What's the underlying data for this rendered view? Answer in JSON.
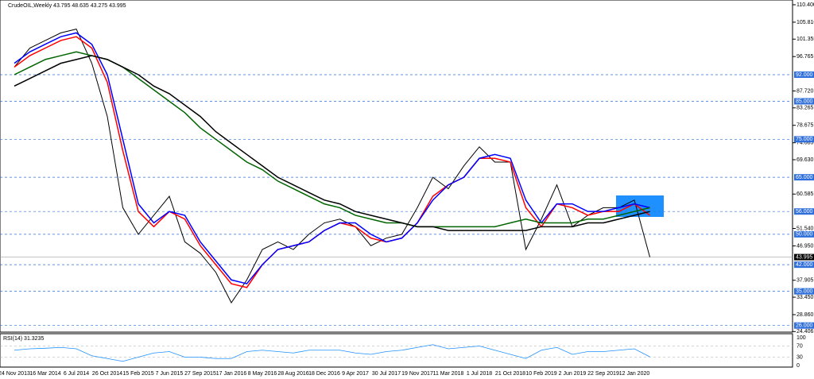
{
  "chart_data": [
    {
      "type": "line",
      "title": "CrudeOIL,Weekly 43.795 48.635 43.275 43.995",
      "categories": [
        "24 Nov 2013",
        null,
        "16 Mar 2014",
        null,
        "6 Jul 2014",
        null,
        "26 Oct 2014",
        null,
        "15 Feb 2015",
        null,
        "7 Jun 2015",
        null,
        "27 Sep 2015",
        null,
        "17 Jan 2016",
        null,
        "8 May 2016",
        null,
        "28 Aug 2016",
        null,
        "18 Dec 2016",
        null,
        "9 Apr 2017",
        null,
        "30 Jul 2017",
        null,
        "19 Nov 2017",
        null,
        "11 Mar 2018",
        null,
        "1 Jul 2018",
        null,
        "21 Oct 2018",
        null,
        "10 Feb 2019",
        null,
        "2 Jun 2019",
        null,
        "22 Sep 2019",
        null,
        "12 Jan 2020",
        null
      ],
      "series": [
        {
          "color": "#000000",
          "values": [
            94,
            99,
            101,
            103,
            104,
            95,
            81,
            57,
            50,
            55,
            60,
            48,
            45,
            40,
            32,
            38,
            46,
            48,
            46,
            50,
            53,
            54,
            52,
            47,
            49,
            50,
            57,
            65,
            62,
            68,
            73,
            69,
            69,
            46,
            54,
            63,
            52,
            55,
            57,
            57,
            59,
            44
          ]
        },
        {
          "color": "#ff0000",
          "values": [
            94,
            97,
            99,
            101,
            102,
            99,
            90,
            72,
            56,
            52,
            56,
            54,
            47,
            42,
            37,
            36,
            42,
            46,
            47,
            48,
            51,
            53,
            52,
            49,
            48,
            49,
            53,
            60,
            63,
            65,
            70,
            70,
            69,
            57,
            52,
            58,
            57,
            55,
            56,
            56,
            58,
            55
          ]
        },
        {
          "color": "#0000ff",
          "values": [
            95,
            98,
            100,
            102,
            103,
            100,
            92,
            75,
            58,
            53,
            56,
            55,
            48,
            43,
            38,
            37,
            42,
            46,
            47,
            48,
            51,
            53,
            53,
            50,
            48,
            49,
            53,
            59,
            63,
            65,
            70,
            71,
            70,
            59,
            53,
            58,
            58,
            56,
            56,
            57,
            58,
            57
          ]
        },
        {
          "color": "#006400",
          "values": [
            92,
            94,
            96,
            97,
            98,
            97,
            96,
            94,
            91,
            88,
            85,
            82,
            78,
            75,
            72,
            69,
            67,
            64,
            62,
            60,
            58,
            57,
            55,
            54,
            53,
            53,
            52,
            52,
            52,
            52,
            52,
            52,
            53,
            54,
            53,
            53,
            53,
            54,
            54,
            55,
            56,
            57
          ]
        },
        {
          "color": "#000000",
          "values": [
            89,
            91,
            93,
            95,
            96,
            97,
            96,
            94,
            92,
            89,
            87,
            84,
            81,
            77,
            74,
            71,
            68,
            65,
            63,
            61,
            59,
            58,
            56,
            55,
            54,
            53,
            52,
            52,
            51,
            51,
            51,
            51,
            51,
            51,
            52,
            52,
            52,
            53,
            53,
            54,
            55,
            56
          ]
        }
      ],
      "ylim": [
        24.26,
        111.65
      ],
      "yticks": [
        {
          "value": 110.4,
          "label": "110.400"
        },
        {
          "value": 105.81,
          "label": "105.810"
        },
        {
          "value": 101.355,
          "label": "101.355"
        },
        {
          "value": 96.765,
          "label": "96.765"
        },
        {
          "value": 87.72,
          "label": "87.720"
        },
        {
          "value": 83.265,
          "label": "83.265"
        },
        {
          "value": 78.675,
          "label": "78.675"
        },
        {
          "value": 74.085,
          "label": "74.085"
        },
        {
          "value": 69.63,
          "label": "69.630"
        },
        {
          "value": 60.585,
          "label": "60.585"
        },
        {
          "value": 51.54,
          "label": "51.540"
        },
        {
          "value": 46.95,
          "label": "46.950"
        },
        {
          "value": 37.905,
          "label": "37.905"
        },
        {
          "value": 33.45,
          "label": "33.450"
        },
        {
          "value": 28.86,
          "label": "28.860"
        },
        {
          "value": 24.406,
          "label": "24.406"
        }
      ],
      "levels": [
        {
          "value": 92,
          "label": "92.000"
        },
        {
          "value": 85,
          "label": "85.000"
        },
        {
          "value": 75,
          "label": "75.000"
        },
        {
          "value": 65,
          "label": "65.000"
        },
        {
          "value": 56,
          "label": "56.000"
        },
        {
          "value": 50,
          "label": "50.000"
        },
        {
          "value": 42,
          "label": "42.000"
        },
        {
          "value": 35,
          "label": "35.000"
        },
        {
          "value": 26,
          "label": "26.000"
        }
      ],
      "level_color": "#2f6fdc",
      "last": {
        "value": 43.995,
        "label": "43.995"
      }
    },
    {
      "type": "line",
      "title": "RSI(14) 31.3235",
      "color": "#1e90ff",
      "values": [
        55,
        60,
        62,
        65,
        60,
        35,
        25,
        15,
        30,
        45,
        50,
        30,
        30,
        25,
        25,
        50,
        55,
        50,
        45,
        55,
        55,
        55,
        45,
        40,
        50,
        55,
        65,
        75,
        60,
        65,
        70,
        55,
        40,
        25,
        55,
        65,
        40,
        50,
        50,
        55,
        60,
        31
      ],
      "ylim": [
        0,
        100
      ],
      "yticks": [
        100,
        70,
        30,
        0
      ]
    }
  ]
}
